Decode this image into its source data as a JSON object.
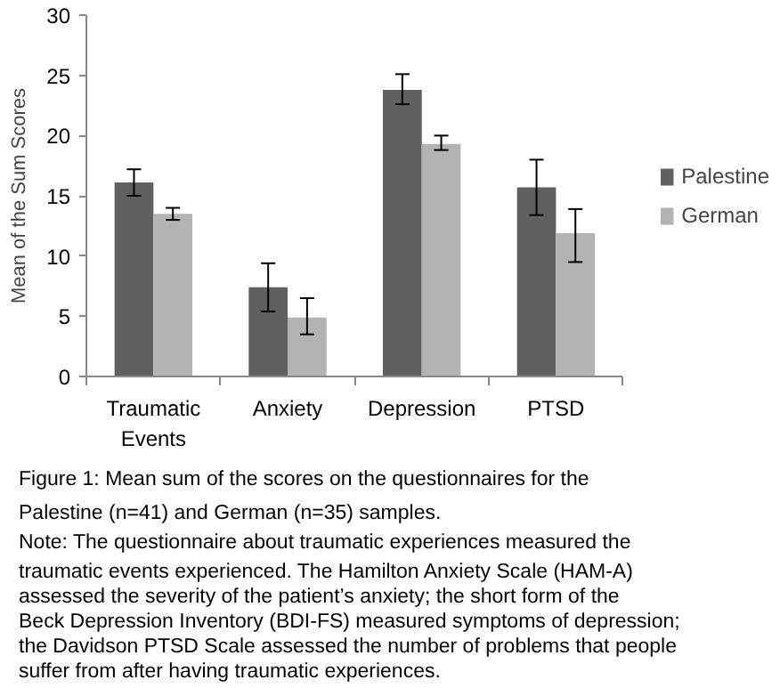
{
  "chart_data": {
    "type": "bar",
    "title": "Figure 1: Mean sum of the scores on the questionnaires for the Palestine (n=41) and German (n=35) samples.",
    "ylabel": "Mean of the Sum Scores",
    "categories": [
      "Traumatic Events",
      "Anxiety",
      "Depression",
      "PTSD"
    ],
    "series": [
      {
        "name": "Palestine",
        "color": "#606060",
        "values": [
          16.1,
          7.4,
          23.8,
          15.7
        ],
        "errors": [
          [
            15.0,
            17.2
          ],
          [
            5.4,
            9.4
          ],
          [
            22.6,
            25.1
          ],
          [
            13.4,
            18.0
          ]
        ]
      },
      {
        "name": "German",
        "color": "#b3b3b3",
        "values": [
          13.5,
          4.9,
          19.3,
          11.9
        ],
        "errors": [
          [
            13.0,
            14.0
          ],
          [
            3.5,
            6.5
          ],
          [
            18.8,
            20.0
          ],
          [
            9.5,
            13.9
          ]
        ]
      }
    ],
    "ylim": [
      0,
      30
    ],
    "yticks": [
      0,
      5,
      10,
      15,
      20,
      25,
      30
    ],
    "grid": false,
    "legend": "right",
    "annotations": [
      "Note: The questionnaire about traumatic experiences measured the traumatic events experienced. The Hamilton Anxiety Scale (HAM-A) assessed the severity of the patient’s anxiety; the short form of the Beck Depression Inventory (BDI-FS) measured symptoms of depression; the Davidson PTSD Scale assessed the number of problems that people suffer from after having traumatic experiences."
    ]
  }
}
